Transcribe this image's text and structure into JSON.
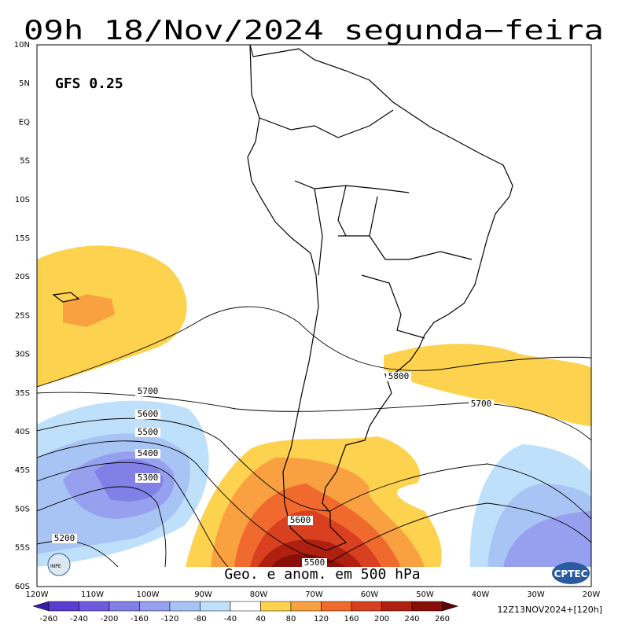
{
  "title": "09h 18/Nov/2024 segunda−feira",
  "model_label": "GFS 0.25",
  "lat_labels": [
    "10N",
    "5N",
    "EQ",
    "5S",
    "10S",
    "15S",
    "20S",
    "25S",
    "30S",
    "35S",
    "40S",
    "45S",
    "50S",
    "55S",
    "60S"
  ],
  "lon_labels": [
    "120W",
    "110W",
    "100W",
    "90W",
    "80W",
    "70W",
    "60W",
    "50W",
    "40W",
    "30W",
    "20W"
  ],
  "contour_labels": [
    5700,
    5600,
    5500,
    5400,
    5300,
    5200,
    5800,
    5700,
    5600,
    5500
  ],
  "footer_text": "Geo. e anom. em 500 hPa",
  "colorbar": {
    "labels": [
      -260,
      -240,
      -200,
      -160,
      -120,
      -80,
      -40,
      40,
      80,
      120,
      160,
      200,
      240,
      260
    ],
    "colors": [
      "#3a1aa8",
      "#5a3cd0",
      "#6e5ae0",
      "#8080e6",
      "#96a0ee",
      "#a8c4f4",
      "#bfe0fa",
      "#ffffff",
      "#fdd24e",
      "#f9a040",
      "#f06a2e",
      "#d84020",
      "#b02010",
      "#881008",
      "#5a0606"
    ]
  },
  "run_label": "12Z13NOV2024+[120h]",
  "logos": [
    "INPE",
    "CPTEC"
  ]
}
